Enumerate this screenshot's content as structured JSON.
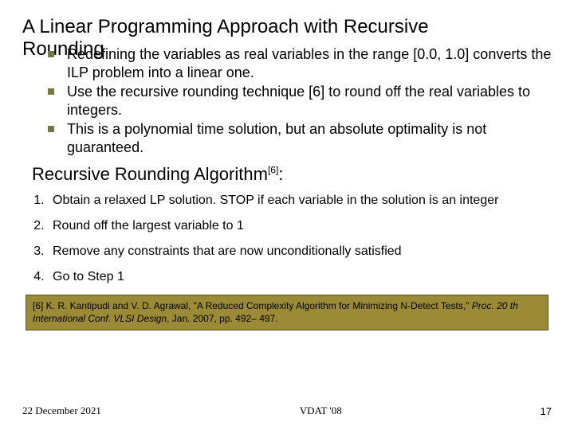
{
  "title_line1": "A Linear Programming Approach with Recursive",
  "title_line2": "Rounding",
  "bullets": {
    "b1": "Redefining the variables as real variables in the range [0.0, 1.0] converts the ILP problem into a linear one.",
    "b2": "Use the recursive rounding technique [6] to round off the real variables to integers.",
    "b3": "This is a polynomial time solution, but an absolute optimality is not guaranteed."
  },
  "section_heading": "Recursive Rounding Algorithm",
  "section_heading_sup": "[6]",
  "section_heading_tail": ":",
  "steps": {
    "s1": "Obtain a relaxed LP solution. STOP if each variable in the solution is an integer",
    "s2": "Round off the largest variable to 1",
    "s3": "Remove any constraints that are now unconditionally satisfied",
    "s4": "Go to Step 1"
  },
  "reference_pre": "[6] K. R. Kantipudi and V. D. Agrawal, \"A Reduced Complexity Algorithm for Minimizing N-Detect Tests,\" ",
  "reference_em": "Proc. 20 th International Conf. VLSI Design",
  "reference_post": ", Jan. 2007, pp. 492– 497.",
  "footer": {
    "date": "22 December 2021",
    "center": "VDAT '08",
    "page": "17"
  },
  "colors": {
    "bullet": "#777744",
    "refbox_bg": "#9b8b36",
    "text": "#000000"
  }
}
